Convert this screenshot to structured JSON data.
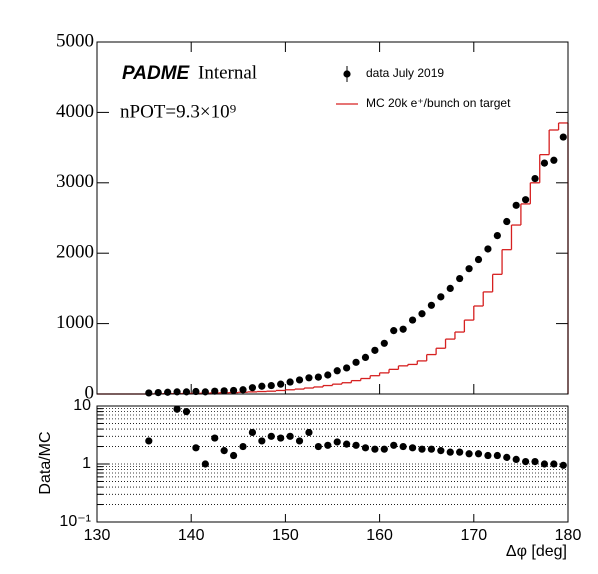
{
  "chart_data": [
    {
      "type": "histogram",
      "annotations": [
        "PADME",
        "Internal",
        "nPOT=9.3×10⁹"
      ],
      "xlim": [
        130,
        180
      ],
      "xticks": [
        130,
        140,
        150,
        160,
        170,
        180
      ],
      "ylim": [
        0,
        5000
      ],
      "yticks": [
        0,
        1000,
        2000,
        3000,
        4000,
        5000
      ],
      "legend": "top-right",
      "series": [
        {
          "name": "data July 2019",
          "color": "#000000",
          "x": [
            135.5,
            136.5,
            137.5,
            138.5,
            139.5,
            140.5,
            141.5,
            142.5,
            143.5,
            144.5,
            145.5,
            146.5,
            147.5,
            148.5,
            149.5,
            150.5,
            151.5,
            152.5,
            153.5,
            154.5,
            155.5,
            156.5,
            157.5,
            158.5,
            159.5,
            160.5,
            161.5,
            162.5,
            163.5,
            164.5,
            165.5,
            166.5,
            167.5,
            168.5,
            169.5,
            170.5,
            171.5,
            172.5,
            173.5,
            174.5,
            175.5,
            176.5,
            177.5,
            178.5,
            179.5
          ],
          "values": [
            15,
            20,
            25,
            30,
            30,
            35,
            30,
            40,
            45,
            50,
            60,
            90,
            110,
            120,
            140,
            170,
            200,
            230,
            240,
            270,
            330,
            370,
            450,
            520,
            620,
            720,
            900,
            920,
            1050,
            1140,
            1260,
            1380,
            1500,
            1640,
            1780,
            1910,
            2060,
            2250,
            2450,
            2680,
            2760,
            3060,
            3280,
            3320,
            3650
          ]
        },
        {
          "name": "MC 20k e⁺/bunch on target",
          "color": "#d62020",
          "bins": [
            130,
            131,
            132,
            133,
            134,
            135,
            136,
            137,
            138,
            139,
            140,
            141,
            142,
            143,
            144,
            145,
            146,
            147,
            148,
            149,
            150,
            151,
            152,
            153,
            154,
            155,
            156,
            157,
            158,
            159,
            160,
            161,
            162,
            163,
            164,
            165,
            166,
            167,
            168,
            169,
            170,
            171,
            172,
            173,
            174,
            175,
            176,
            177,
            178,
            179,
            180
          ],
          "values": [
            0,
            0,
            0,
            0,
            0,
            0,
            3,
            5,
            5,
            8,
            10,
            12,
            15,
            18,
            20,
            25,
            30,
            35,
            40,
            50,
            60,
            70,
            85,
            100,
            120,
            140,
            160,
            190,
            220,
            260,
            300,
            350,
            400,
            420,
            470,
            560,
            650,
            780,
            880,
            1050,
            1250,
            1450,
            1700,
            2050,
            2400,
            2700,
            3000,
            3400,
            3750,
            3850
          ]
        }
      ]
    },
    {
      "type": "scatter",
      "xlabel": "Δφ [deg]",
      "ylabel": "Data/MC",
      "xlim": [
        130,
        180
      ],
      "xticks": [
        130,
        140,
        150,
        160,
        170,
        180
      ],
      "ylim": [
        0.1,
        10
      ],
      "log": true,
      "grid": true,
      "yticks": [
        {
          "value": 0.1,
          "label": "10⁻¹"
        },
        1,
        10
      ],
      "yminorticks": [
        0.2,
        0.3,
        0.4,
        0.5,
        0.6,
        0.7,
        0.8,
        0.9,
        2,
        3,
        4,
        5,
        6,
        7,
        8,
        9
      ],
      "color": "#000000",
      "x": [
        135.5,
        138.5,
        139.5,
        140.5,
        141.5,
        142.5,
        143.5,
        144.5,
        145.5,
        146.5,
        147.5,
        148.5,
        149.5,
        150.5,
        151.5,
        152.5,
        153.5,
        154.5,
        155.5,
        156.5,
        157.5,
        158.5,
        159.5,
        160.5,
        161.5,
        162.5,
        163.5,
        164.5,
        165.5,
        166.5,
        167.5,
        168.5,
        169.5,
        170.5,
        171.5,
        172.5,
        173.5,
        174.5,
        175.5,
        176.5,
        177.5,
        178.5,
        179.5
      ],
      "values": [
        2.5,
        8.8,
        8,
        1.9,
        1,
        2.8,
        1.7,
        1.4,
        2,
        3.5,
        2.5,
        3,
        2.8,
        3,
        2.5,
        3.5,
        2,
        2.1,
        2.4,
        2.2,
        2.1,
        1.9,
        1.8,
        1.8,
        2.1,
        2,
        1.9,
        1.8,
        1.8,
        1.7,
        1.6,
        1.6,
        1.5,
        1.5,
        1.4,
        1.4,
        1.3,
        1.2,
        1.1,
        1.1,
        1.0,
        1.0,
        0.95
      ]
    }
  ]
}
